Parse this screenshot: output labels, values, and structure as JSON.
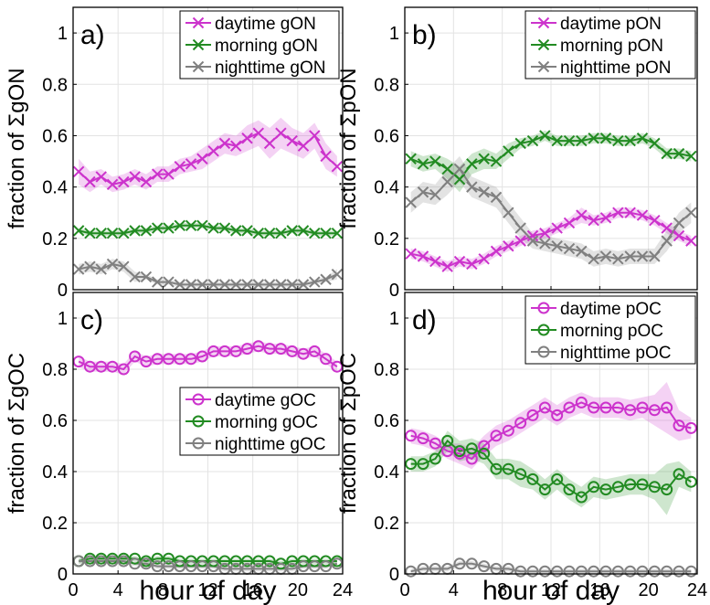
{
  "figure": {
    "shared_xlabel": "hour of day",
    "colors": {
      "daytime": "#cc33cc",
      "morning": "#228B22",
      "nighttime": "#808080"
    }
  },
  "chart_data": [
    {
      "id": "a",
      "type": "line",
      "panel_label": "a)",
      "ylabel": "fraction of ΣgON",
      "xlabel": "",
      "marker": "x",
      "xlim": [
        0,
        24
      ],
      "ylim": [
        0,
        1.1
      ],
      "xticks": [
        "0",
        "4",
        "8",
        "12",
        "16",
        "20",
        "24"
      ],
      "yticks": [
        "0",
        "0.2",
        "0.4",
        "0.6",
        "0.8",
        "1"
      ],
      "grid": true,
      "legend_position": "top-right",
      "x": [
        0.5,
        1.5,
        2.5,
        3.5,
        4.5,
        5.5,
        6.5,
        7.5,
        8.5,
        9.5,
        10.5,
        11.5,
        12.5,
        13.5,
        14.5,
        15.5,
        16.5,
        17.5,
        18.5,
        19.5,
        20.5,
        21.5,
        22.5,
        23.5
      ],
      "series": [
        {
          "name": "daytime gON",
          "color": "#cc33cc",
          "values": [
            0.46,
            0.42,
            0.44,
            0.41,
            0.42,
            0.44,
            0.42,
            0.45,
            0.45,
            0.48,
            0.49,
            0.51,
            0.54,
            0.57,
            0.56,
            0.59,
            0.61,
            0.57,
            0.61,
            0.58,
            0.56,
            0.6,
            0.52,
            0.48
          ],
          "band": [
            0.05,
            0.04,
            0.03,
            0.03,
            0.03,
            0.03,
            0.03,
            0.03,
            0.03,
            0.03,
            0.03,
            0.04,
            0.04,
            0.04,
            0.04,
            0.05,
            0.05,
            0.06,
            0.06,
            0.05,
            0.05,
            0.05,
            0.05,
            0.04
          ]
        },
        {
          "name": "morning gON",
          "color": "#228B22",
          "values": [
            0.23,
            0.22,
            0.22,
            0.22,
            0.22,
            0.23,
            0.23,
            0.24,
            0.24,
            0.25,
            0.25,
            0.25,
            0.24,
            0.24,
            0.23,
            0.23,
            0.22,
            0.22,
            0.22,
            0.23,
            0.23,
            0.22,
            0.22,
            0.22
          ],
          "band": [
            0.01,
            0.01,
            0.01,
            0.01,
            0.01,
            0.01,
            0.01,
            0.01,
            0.01,
            0.01,
            0.01,
            0.01,
            0.01,
            0.01,
            0.01,
            0.01,
            0.01,
            0.01,
            0.01,
            0.01,
            0.01,
            0.01,
            0.01,
            0.01
          ]
        },
        {
          "name": "nighttime gON",
          "color": "#808080",
          "values": [
            0.08,
            0.09,
            0.08,
            0.1,
            0.09,
            0.05,
            0.05,
            0.03,
            0.03,
            0.02,
            0.02,
            0.02,
            0.02,
            0.02,
            0.02,
            0.02,
            0.02,
            0.02,
            0.02,
            0.02,
            0.02,
            0.03,
            0.04,
            0.06
          ],
          "band": [
            0.02,
            0.02,
            0.02,
            0.02,
            0.02,
            0.02,
            0.01,
            0.01,
            0.01,
            0.01,
            0.01,
            0.01,
            0.01,
            0.01,
            0.01,
            0.01,
            0.01,
            0.01,
            0.01,
            0.01,
            0.01,
            0.01,
            0.01,
            0.02
          ]
        }
      ]
    },
    {
      "id": "b",
      "type": "line",
      "panel_label": "b)",
      "ylabel": "fraction of ΣpON",
      "xlabel": "",
      "marker": "x",
      "xlim": [
        0,
        24
      ],
      "ylim": [
        0,
        1.1
      ],
      "xticks": [
        "0",
        "4",
        "8",
        "12",
        "16",
        "20",
        "24"
      ],
      "yticks": [
        "0",
        "0.2",
        "0.4",
        "0.6",
        "0.8",
        "1"
      ],
      "grid": true,
      "legend_position": "top-right",
      "x": [
        0.5,
        1.5,
        2.5,
        3.5,
        4.5,
        5.5,
        6.5,
        7.5,
        8.5,
        9.5,
        10.5,
        11.5,
        12.5,
        13.5,
        14.5,
        15.5,
        16.5,
        17.5,
        18.5,
        19.5,
        20.5,
        21.5,
        22.5,
        23.5
      ],
      "series": [
        {
          "name": "daytime pON",
          "color": "#cc33cc",
          "values": [
            0.14,
            0.13,
            0.11,
            0.09,
            0.11,
            0.1,
            0.12,
            0.15,
            0.17,
            0.19,
            0.21,
            0.22,
            0.24,
            0.26,
            0.29,
            0.27,
            0.28,
            0.3,
            0.3,
            0.29,
            0.27,
            0.24,
            0.21,
            0.19
          ],
          "band": [
            0.02,
            0.02,
            0.02,
            0.02,
            0.02,
            0.02,
            0.02,
            0.02,
            0.02,
            0.02,
            0.02,
            0.02,
            0.02,
            0.02,
            0.03,
            0.02,
            0.02,
            0.02,
            0.02,
            0.02,
            0.02,
            0.02,
            0.02,
            0.02
          ]
        },
        {
          "name": "morning pON",
          "color": "#228B22",
          "values": [
            0.51,
            0.49,
            0.5,
            0.47,
            0.43,
            0.49,
            0.51,
            0.5,
            0.54,
            0.57,
            0.58,
            0.6,
            0.58,
            0.58,
            0.58,
            0.59,
            0.59,
            0.58,
            0.58,
            0.59,
            0.57,
            0.53,
            0.53,
            0.52
          ],
          "band": [
            0.03,
            0.03,
            0.03,
            0.04,
            0.05,
            0.04,
            0.04,
            0.03,
            0.03,
            0.02,
            0.02,
            0.02,
            0.02,
            0.02,
            0.02,
            0.02,
            0.02,
            0.02,
            0.02,
            0.02,
            0.02,
            0.02,
            0.02,
            0.02
          ]
        },
        {
          "name": "nighttime pON",
          "color": "#808080",
          "values": [
            0.34,
            0.38,
            0.37,
            0.42,
            0.47,
            0.4,
            0.38,
            0.36,
            0.3,
            0.24,
            0.19,
            0.18,
            0.17,
            0.16,
            0.15,
            0.12,
            0.13,
            0.12,
            0.13,
            0.13,
            0.13,
            0.19,
            0.26,
            0.3
          ],
          "band": [
            0.04,
            0.04,
            0.04,
            0.05,
            0.05,
            0.04,
            0.04,
            0.04,
            0.04,
            0.04,
            0.03,
            0.03,
            0.03,
            0.03,
            0.03,
            0.03,
            0.03,
            0.03,
            0.03,
            0.03,
            0.03,
            0.04,
            0.04,
            0.04
          ]
        }
      ]
    },
    {
      "id": "c",
      "type": "line",
      "panel_label": "c)",
      "ylabel": "fraction of ΣgOC",
      "xlabel": "hour of day",
      "marker": "o",
      "xlim": [
        0,
        24
      ],
      "ylim": [
        0,
        1.1
      ],
      "xticks": [
        "0",
        "4",
        "8",
        "12",
        "16",
        "20",
        "24"
      ],
      "yticks": [
        "0",
        "0.2",
        "0.4",
        "0.6",
        "0.8",
        "1"
      ],
      "grid": true,
      "legend_position": "center-right",
      "x": [
        0.5,
        1.5,
        2.5,
        3.5,
        4.5,
        5.5,
        6.5,
        7.5,
        8.5,
        9.5,
        10.5,
        11.5,
        12.5,
        13.5,
        14.5,
        15.5,
        16.5,
        17.5,
        18.5,
        19.5,
        20.5,
        21.5,
        22.5,
        23.5
      ],
      "series": [
        {
          "name": "daytime gOC",
          "color": "#cc33cc",
          "values": [
            0.83,
            0.81,
            0.81,
            0.81,
            0.8,
            0.85,
            0.83,
            0.84,
            0.84,
            0.84,
            0.84,
            0.85,
            0.87,
            0.87,
            0.87,
            0.88,
            0.89,
            0.88,
            0.88,
            0.87,
            0.86,
            0.87,
            0.84,
            0.81
          ],
          "band": [
            0.02,
            0.02,
            0.02,
            0.02,
            0.02,
            0.02,
            0.02,
            0.02,
            0.02,
            0.02,
            0.02,
            0.02,
            0.02,
            0.02,
            0.02,
            0.02,
            0.02,
            0.02,
            0.02,
            0.02,
            0.02,
            0.02,
            0.02,
            0.02
          ]
        },
        {
          "name": "morning gOC",
          "color": "#228B22",
          "values": [
            0.05,
            0.06,
            0.06,
            0.06,
            0.06,
            0.06,
            0.05,
            0.06,
            0.06,
            0.05,
            0.05,
            0.05,
            0.05,
            0.05,
            0.05,
            0.05,
            0.05,
            0.05,
            0.04,
            0.05,
            0.05,
            0.05,
            0.05,
            0.05
          ],
          "band": [
            0.01,
            0.01,
            0.01,
            0.01,
            0.01,
            0.01,
            0.01,
            0.01,
            0.01,
            0.01,
            0.01,
            0.01,
            0.01,
            0.01,
            0.01,
            0.01,
            0.01,
            0.01,
            0.01,
            0.01,
            0.01,
            0.01,
            0.01,
            0.01
          ]
        },
        {
          "name": "nighttime gOC",
          "color": "#808080",
          "values": [
            0.05,
            0.05,
            0.05,
            0.05,
            0.05,
            0.04,
            0.04,
            0.03,
            0.03,
            0.03,
            0.03,
            0.03,
            0.03,
            0.02,
            0.02,
            0.02,
            0.02,
            0.02,
            0.02,
            0.02,
            0.03,
            0.03,
            0.03,
            0.04
          ],
          "band": [
            0.01,
            0.01,
            0.01,
            0.01,
            0.01,
            0.01,
            0.01,
            0.01,
            0.01,
            0.01,
            0.01,
            0.01,
            0.01,
            0.01,
            0.01,
            0.01,
            0.01,
            0.01,
            0.01,
            0.01,
            0.01,
            0.01,
            0.01,
            0.01
          ]
        }
      ]
    },
    {
      "id": "d",
      "type": "line",
      "panel_label": "d)",
      "ylabel": "fraction of ΣpOC",
      "xlabel": "hour of day",
      "marker": "o",
      "xlim": [
        0,
        24
      ],
      "ylim": [
        0,
        1.1
      ],
      "xticks": [
        "0",
        "4",
        "8",
        "12",
        "16",
        "20",
        "24"
      ],
      "yticks": [
        "0",
        "0.2",
        "0.4",
        "0.6",
        "0.8",
        "1"
      ],
      "grid": true,
      "legend_position": "top-right",
      "x": [
        0.5,
        1.5,
        2.5,
        3.5,
        4.5,
        5.5,
        6.5,
        7.5,
        8.5,
        9.5,
        10.5,
        11.5,
        12.5,
        13.5,
        14.5,
        15.5,
        16.5,
        17.5,
        18.5,
        19.5,
        20.5,
        21.5,
        22.5,
        23.5
      ],
      "series": [
        {
          "name": "daytime pOC",
          "color": "#cc33cc",
          "values": [
            0.54,
            0.53,
            0.51,
            0.48,
            0.47,
            0.45,
            0.5,
            0.54,
            0.56,
            0.59,
            0.62,
            0.65,
            0.62,
            0.65,
            0.67,
            0.65,
            0.65,
            0.65,
            0.64,
            0.65,
            0.64,
            0.65,
            0.58,
            0.57
          ],
          "band": [
            0.03,
            0.03,
            0.03,
            0.03,
            0.04,
            0.04,
            0.04,
            0.04,
            0.04,
            0.04,
            0.04,
            0.04,
            0.04,
            0.04,
            0.04,
            0.04,
            0.04,
            0.04,
            0.04,
            0.04,
            0.06,
            0.1,
            0.06,
            0.04
          ]
        },
        {
          "name": "morning pOC",
          "color": "#228B22",
          "values": [
            0.43,
            0.43,
            0.45,
            0.52,
            0.48,
            0.49,
            0.47,
            0.41,
            0.41,
            0.39,
            0.37,
            0.33,
            0.37,
            0.33,
            0.3,
            0.34,
            0.33,
            0.34,
            0.35,
            0.35,
            0.34,
            0.33,
            0.39,
            0.36
          ],
          "band": [
            0.03,
            0.03,
            0.03,
            0.04,
            0.04,
            0.04,
            0.04,
            0.04,
            0.04,
            0.05,
            0.04,
            0.04,
            0.04,
            0.04,
            0.04,
            0.04,
            0.04,
            0.04,
            0.04,
            0.04,
            0.05,
            0.1,
            0.05,
            0.04
          ]
        },
        {
          "name": "nighttime pOC",
          "color": "#808080",
          "values": [
            0.01,
            0.02,
            0.02,
            0.02,
            0.04,
            0.04,
            0.03,
            0.02,
            0.02,
            0.01,
            0.01,
            0.01,
            0.01,
            0.01,
            0.01,
            0.01,
            0.01,
            0.01,
            0.01,
            0.01,
            0.01,
            0.01,
            0.01,
            0.01
          ],
          "band": [
            0.01,
            0.01,
            0.01,
            0.01,
            0.01,
            0.01,
            0.01,
            0.01,
            0.01,
            0.01,
            0.01,
            0.01,
            0.01,
            0.01,
            0.01,
            0.01,
            0.01,
            0.01,
            0.01,
            0.01,
            0.01,
            0.01,
            0.01,
            0.01
          ]
        }
      ]
    }
  ]
}
